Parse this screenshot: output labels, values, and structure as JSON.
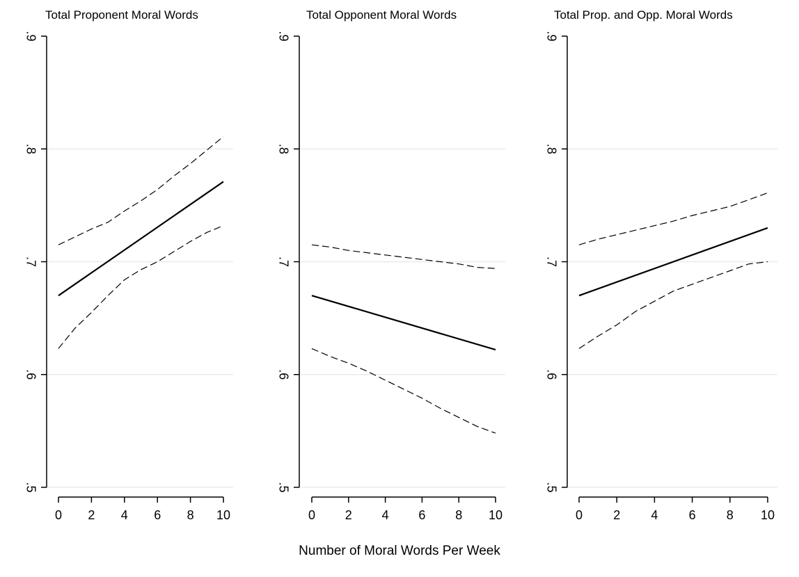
{
  "xlabel": "Number of Moral Words Per Week",
  "colors": {
    "axis": "#000000",
    "grid": "#e6ecec",
    "line": "#000000"
  },
  "chart_data": [
    {
      "type": "line",
      "title": "Total Proponent Moral Words",
      "xlim": [
        0,
        10
      ],
      "ylim": [
        0.5,
        0.9
      ],
      "xticks": [
        0,
        2,
        4,
        6,
        8,
        10
      ],
      "xtick_labels": [
        "0",
        "2",
        "4",
        "6",
        "8",
        "10"
      ],
      "yticks": [
        0.5,
        0.6,
        0.7,
        0.8,
        0.9
      ],
      "ytick_labels": [
        ".5",
        ".6",
        ".7",
        ".8",
        ".9"
      ],
      "grid": true,
      "series": [
        {
          "style": "solid",
          "x": [
            0,
            10
          ],
          "y": [
            0.67,
            0.771
          ]
        },
        {
          "style": "dashed",
          "x": [
            0,
            1,
            2,
            3,
            4,
            5,
            6,
            7,
            8,
            9,
            10
          ],
          "y": [
            0.715,
            0.722,
            0.729,
            0.735,
            0.745,
            0.754,
            0.764,
            0.776,
            0.787,
            0.799,
            0.811
          ]
        },
        {
          "style": "dashed",
          "x": [
            0,
            1,
            2,
            3,
            4,
            5,
            6,
            7,
            8,
            9,
            10
          ],
          "y": [
            0.623,
            0.641,
            0.655,
            0.67,
            0.684,
            0.693,
            0.7,
            0.709,
            0.718,
            0.726,
            0.732
          ]
        }
      ]
    },
    {
      "type": "line",
      "title": "Total Opponent Moral Words",
      "xlim": [
        0,
        10
      ],
      "ylim": [
        0.5,
        0.9
      ],
      "xticks": [
        0,
        2,
        4,
        6,
        8,
        10
      ],
      "xtick_labels": [
        "0",
        "2",
        "4",
        "6",
        "8",
        "10"
      ],
      "yticks": [
        0.5,
        0.6,
        0.7,
        0.8,
        0.9
      ],
      "ytick_labels": [
        ".5",
        ".6",
        ".7",
        ".8",
        ".9"
      ],
      "grid": true,
      "series": [
        {
          "style": "solid",
          "x": [
            0,
            10
          ],
          "y": [
            0.67,
            0.622
          ]
        },
        {
          "style": "dashed",
          "x": [
            0,
            1,
            2,
            3,
            4,
            5,
            6,
            7,
            8,
            9,
            10
          ],
          "y": [
            0.715,
            0.713,
            0.71,
            0.708,
            0.706,
            0.704,
            0.702,
            0.7,
            0.698,
            0.695,
            0.694
          ]
        },
        {
          "style": "dashed",
          "x": [
            0,
            1,
            2,
            3,
            4,
            5,
            6,
            7,
            8,
            9,
            10
          ],
          "y": [
            0.623,
            0.616,
            0.61,
            0.603,
            0.595,
            0.587,
            0.579,
            0.57,
            0.562,
            0.554,
            0.548
          ]
        }
      ]
    },
    {
      "type": "line",
      "title": "Total Prop. and Opp. Moral Words",
      "xlim": [
        0,
        10
      ],
      "ylim": [
        0.5,
        0.9
      ],
      "xticks": [
        0,
        2,
        4,
        6,
        8,
        10
      ],
      "xtick_labels": [
        "0",
        "2",
        "4",
        "6",
        "8",
        "10"
      ],
      "yticks": [
        0.5,
        0.6,
        0.7,
        0.8,
        0.9
      ],
      "ytick_labels": [
        ".5",
        ".6",
        ".7",
        ".8",
        ".9"
      ],
      "grid": true,
      "series": [
        {
          "style": "solid",
          "x": [
            0,
            10
          ],
          "y": [
            0.67,
            0.73
          ]
        },
        {
          "style": "dashed",
          "x": [
            0,
            1,
            2,
            3,
            4,
            5,
            6,
            7,
            8,
            9,
            10
          ],
          "y": [
            0.715,
            0.72,
            0.724,
            0.728,
            0.732,
            0.736,
            0.741,
            0.745,
            0.749,
            0.755,
            0.761
          ]
        },
        {
          "style": "dashed",
          "x": [
            0,
            1,
            2,
            3,
            4,
            5,
            6,
            7,
            8,
            9,
            10
          ],
          "y": [
            0.623,
            0.634,
            0.644,
            0.656,
            0.665,
            0.674,
            0.68,
            0.686,
            0.692,
            0.698,
            0.7
          ]
        }
      ]
    }
  ]
}
